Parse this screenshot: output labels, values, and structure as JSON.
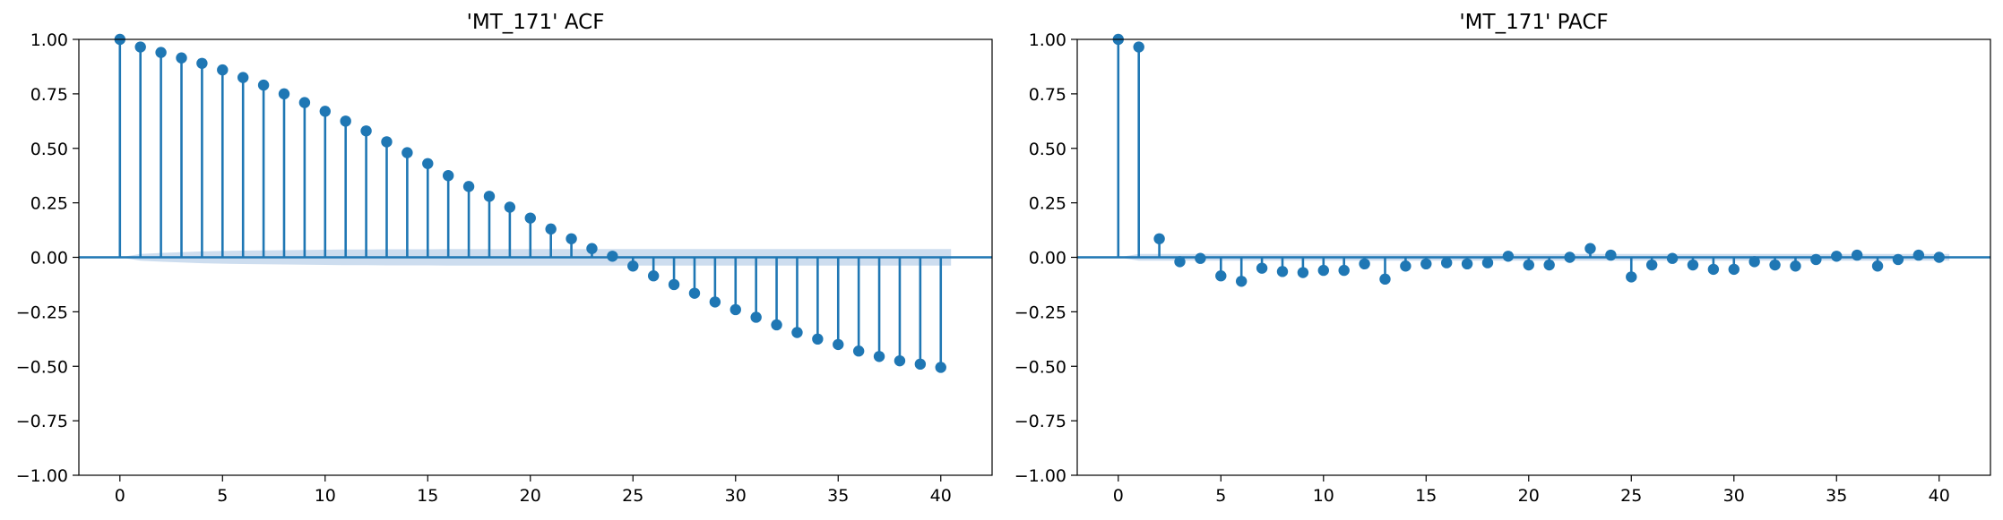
{
  "chart_data": [
    {
      "type": "stem",
      "title": "'MT_171' ACF",
      "xlabel": "",
      "ylabel": "",
      "xlim": [
        -2,
        42.5
      ],
      "ylim": [
        -1.0,
        1.0
      ],
      "xticks": [
        0,
        5,
        10,
        15,
        20,
        25,
        30,
        35,
        40
      ],
      "yticks": [
        1.0,
        0.75,
        0.5,
        0.25,
        0.0,
        -0.25,
        -0.5,
        -0.75,
        -1.0
      ],
      "ytick_labels": [
        "1.00",
        "0.75",
        "0.50",
        "0.25",
        "0.00",
        "−0.25",
        "−0.50",
        "−0.75",
        "−1.00"
      ],
      "xtick_labels": [
        "0",
        "5",
        "10",
        "15",
        "20",
        "25",
        "30",
        "35",
        "40"
      ],
      "x": [
        0,
        1,
        2,
        3,
        4,
        5,
        6,
        7,
        8,
        9,
        10,
        11,
        12,
        13,
        14,
        15,
        16,
        17,
        18,
        19,
        20,
        21,
        22,
        23,
        24,
        25,
        26,
        27,
        28,
        29,
        30,
        31,
        32,
        33,
        34,
        35,
        36,
        37,
        38,
        39,
        40
      ],
      "values": [
        1.0,
        0.965,
        0.94,
        0.915,
        0.89,
        0.86,
        0.825,
        0.79,
        0.75,
        0.71,
        0.67,
        0.625,
        0.58,
        0.53,
        0.48,
        0.43,
        0.375,
        0.325,
        0.28,
        0.23,
        0.18,
        0.13,
        0.085,
        0.04,
        0.005,
        -0.04,
        -0.085,
        -0.125,
        -0.165,
        -0.205,
        -0.24,
        -0.275,
        -0.31,
        -0.345,
        -0.375,
        -0.4,
        -0.43,
        -0.455,
        -0.475,
        -0.49,
        -0.505
      ],
      "confint_upper": [
        0.0,
        0.015,
        0.02,
        0.024,
        0.027,
        0.029,
        0.031,
        0.032,
        0.033,
        0.034,
        0.035,
        0.036,
        0.036,
        0.037,
        0.037,
        0.037,
        0.038,
        0.038,
        0.038,
        0.038,
        0.038,
        0.038,
        0.038,
        0.038,
        0.038,
        0.038,
        0.038,
        0.038,
        0.038,
        0.038,
        0.038,
        0.038,
        0.038,
        0.038,
        0.038,
        0.038,
        0.038,
        0.038,
        0.038,
        0.038,
        0.038
      ],
      "colors": {
        "stem": "#1f77b4",
        "band": "#bcd2ea",
        "zero_line": "#1f77b4"
      }
    },
    {
      "type": "stem",
      "title": "'MT_171' PACF",
      "xlabel": "",
      "ylabel": "",
      "xlim": [
        -2,
        42.5
      ],
      "ylim": [
        -1.0,
        1.0
      ],
      "xticks": [
        0,
        5,
        10,
        15,
        20,
        25,
        30,
        35,
        40
      ],
      "yticks": [
        1.0,
        0.75,
        0.5,
        0.25,
        0.0,
        -0.25,
        -0.5,
        -0.75,
        -1.0
      ],
      "ytick_labels": [
        "1.00",
        "0.75",
        "0.50",
        "0.25",
        "0.00",
        "−0.25",
        "−0.50",
        "−0.75",
        "−1.00"
      ],
      "xtick_labels": [
        "0",
        "5",
        "10",
        "15",
        "20",
        "25",
        "30",
        "35",
        "40"
      ],
      "x": [
        0,
        1,
        2,
        3,
        4,
        5,
        6,
        7,
        8,
        9,
        10,
        11,
        12,
        13,
        14,
        15,
        16,
        17,
        18,
        19,
        20,
        21,
        22,
        23,
        24,
        25,
        26,
        27,
        28,
        29,
        30,
        31,
        32,
        33,
        34,
        35,
        36,
        37,
        38,
        39,
        40
      ],
      "values": [
        1.0,
        0.965,
        0.085,
        -0.02,
        -0.005,
        -0.085,
        -0.11,
        -0.05,
        -0.065,
        -0.07,
        -0.06,
        -0.06,
        -0.03,
        -0.1,
        -0.04,
        -0.03,
        -0.025,
        -0.03,
        -0.025,
        0.005,
        -0.035,
        -0.035,
        0.0,
        0.04,
        0.01,
        -0.09,
        -0.035,
        -0.005,
        -0.035,
        -0.055,
        -0.055,
        -0.02,
        -0.035,
        -0.04,
        -0.01,
        0.005,
        0.01,
        -0.04,
        -0.01,
        0.01,
        0.0
      ],
      "confint_upper": [
        0.0,
        0.015,
        0.015,
        0.015,
        0.015,
        0.015,
        0.015,
        0.015,
        0.015,
        0.015,
        0.015,
        0.015,
        0.015,
        0.015,
        0.015,
        0.015,
        0.015,
        0.015,
        0.015,
        0.015,
        0.015,
        0.015,
        0.015,
        0.015,
        0.015,
        0.015,
        0.015,
        0.015,
        0.015,
        0.015,
        0.015,
        0.015,
        0.015,
        0.015,
        0.015,
        0.015,
        0.015,
        0.015,
        0.015,
        0.015,
        0.015
      ],
      "colors": {
        "stem": "#1f77b4",
        "band": "#bcd2ea",
        "zero_line": "#1f77b4"
      }
    }
  ]
}
